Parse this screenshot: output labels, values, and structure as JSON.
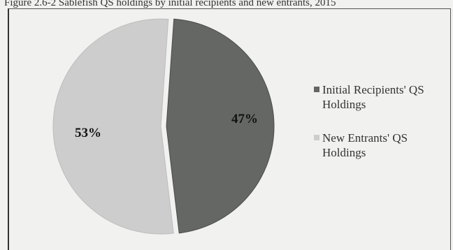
{
  "caption": "Figure 2.6-2 Sablefish QS holdings by initial recipients and new entrants, 2015",
  "chart_data": {
    "type": "pie",
    "title": "",
    "slices": [
      {
        "label": "Initial Recipients' QS Holdings",
        "value": 47,
        "display": "47%",
        "color": "#646763"
      },
      {
        "label": "New Entrants' QS Holdings",
        "value": 53,
        "display": "53%",
        "color": "#cdcdcd"
      }
    ],
    "legend_position": "right",
    "exploded": true
  }
}
